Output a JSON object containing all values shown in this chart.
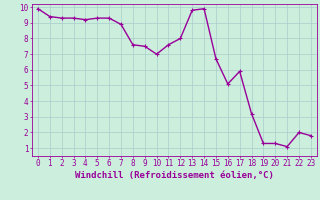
{
  "x": [
    0,
    1,
    2,
    3,
    4,
    5,
    6,
    7,
    8,
    9,
    10,
    11,
    12,
    13,
    14,
    15,
    16,
    17,
    18,
    19,
    20,
    21,
    22,
    23
  ],
  "y": [
    9.9,
    9.4,
    9.3,
    9.3,
    9.2,
    9.3,
    9.3,
    8.9,
    7.6,
    7.5,
    7.0,
    7.6,
    8.0,
    9.8,
    9.9,
    6.7,
    5.1,
    5.9,
    3.2,
    1.3,
    1.3,
    1.1,
    2.0,
    1.8
  ],
  "line_color": "#990099",
  "marker": "+",
  "bg_color": "#cceedd",
  "grid_color": "#aacccc",
  "xlabel": "Windchill (Refroidissement éolien,°C)",
  "xlabel_color": "#990099",
  "tick_color": "#990099",
  "xlim": [
    -0.5,
    23.5
  ],
  "ylim": [
    0.5,
    10.2
  ],
  "yticks": [
    1,
    2,
    3,
    4,
    5,
    6,
    7,
    8,
    9,
    10
  ],
  "xticks": [
    0,
    1,
    2,
    3,
    4,
    5,
    6,
    7,
    8,
    9,
    10,
    11,
    12,
    13,
    14,
    15,
    16,
    17,
    18,
    19,
    20,
    21,
    22,
    23
  ],
  "tick_fontsize": 5.5,
  "xlabel_fontsize": 6.5,
  "linewidth": 1.0,
  "markersize": 3.5
}
